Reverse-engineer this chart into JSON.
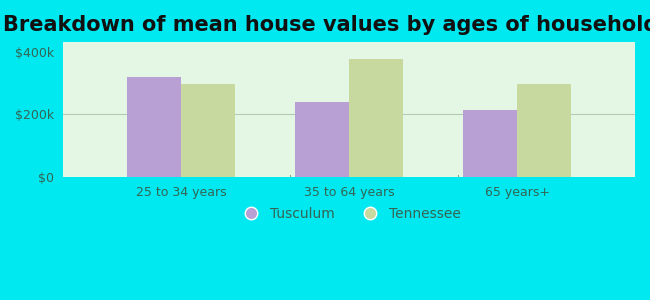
{
  "title": "Breakdown of mean house values by ages of householders",
  "categories": [
    "25 to 34 years",
    "35 to 64 years",
    "65 years+"
  ],
  "tusculum_values": [
    320000,
    240000,
    215000
  ],
  "tennessee_values": [
    295000,
    375000,
    295000
  ],
  "tusculum_color": "#b89fd4",
  "tennessee_color": "#c8d9a0",
  "background_color": "#00e8f0",
  "plot_bg_top": "#d8f0d8",
  "plot_bg_bottom": "#e8fce8",
  "yticks": [
    0,
    200000,
    400000
  ],
  "ylabels": [
    "$0",
    "$200k",
    "$400k"
  ],
  "ylim": [
    0,
    430000
  ],
  "bar_width": 0.32,
  "legend_tusculum": "Tusculum",
  "legend_tennessee": "Tennessee",
  "title_fontsize": 15,
  "tick_fontsize": 9,
  "tick_color": "#336655",
  "legend_fontsize": 10
}
